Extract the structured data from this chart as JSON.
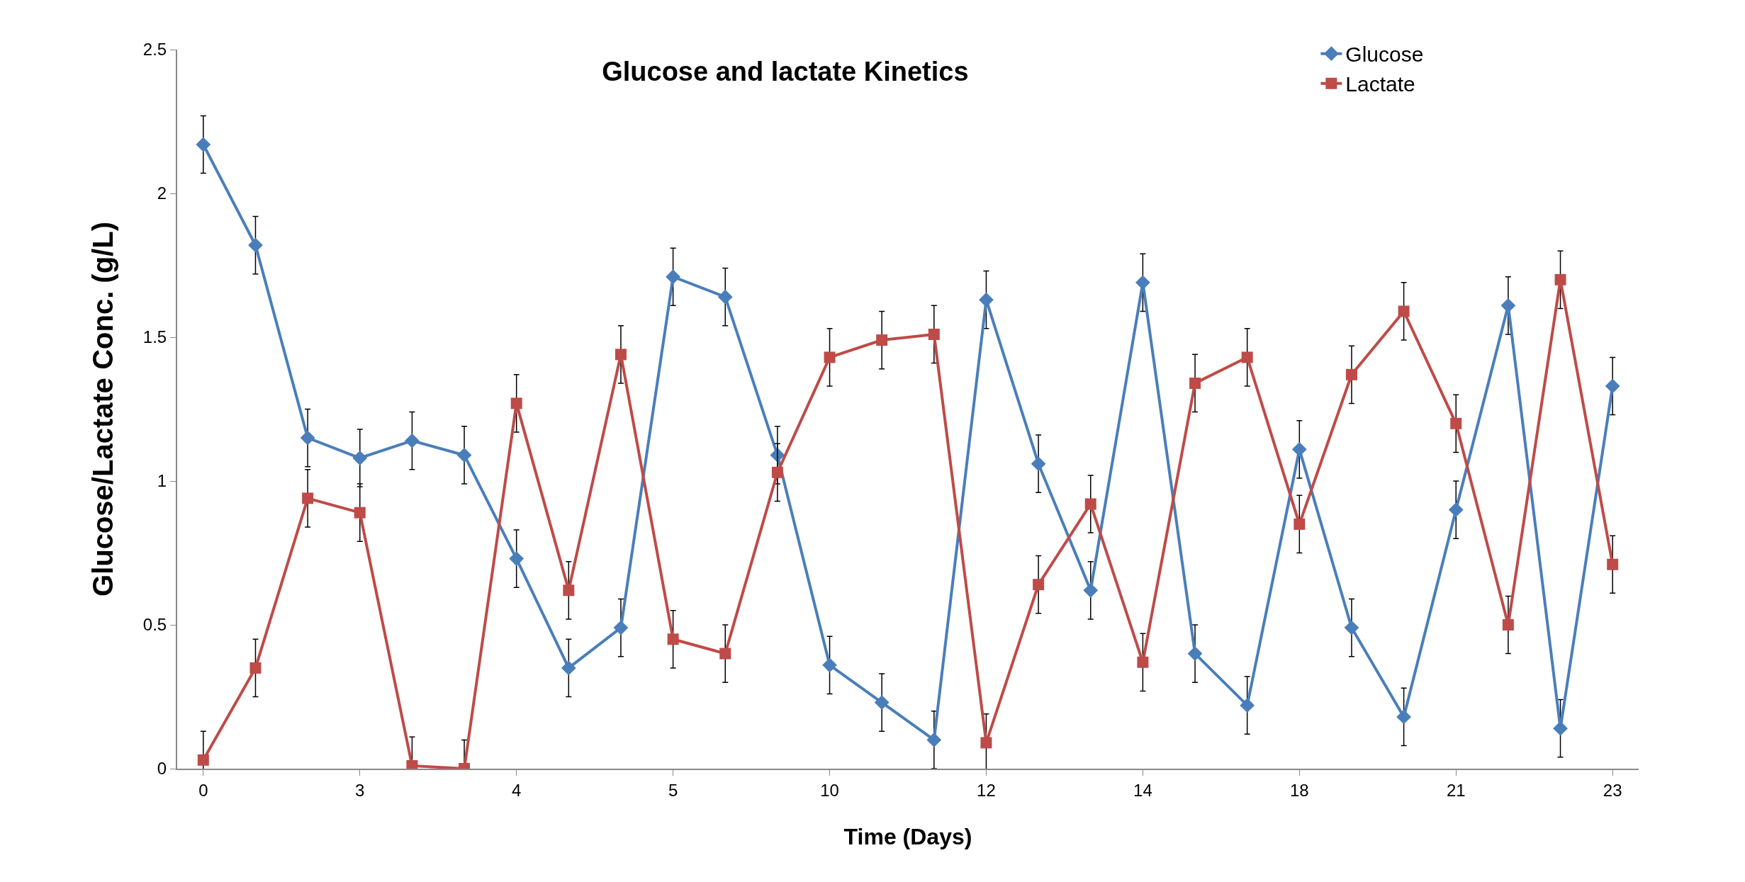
{
  "chart_data": {
    "type": "line",
    "title": "Glucose and lactate Kinetics",
    "xlabel": "Time (Days)",
    "ylabel": "Glucose/Lactate Conc. (g/L)",
    "categories": [
      "0",
      null,
      null,
      "3",
      null,
      null,
      "4",
      null,
      null,
      "5",
      null,
      null,
      "10",
      null,
      null,
      "12",
      null,
      null,
      "14",
      null,
      null,
      "18",
      null,
      null,
      "21",
      null,
      null,
      "23"
    ],
    "series": [
      {
        "name": "Glucose",
        "color": "#4a7ebb",
        "marker": "diamond",
        "values": [
          2.17,
          1.82,
          1.15,
          1.08,
          1.14,
          1.09,
          0.73,
          0.35,
          0.49,
          1.71,
          1.64,
          1.09,
          0.36,
          0.23,
          0.1,
          1.63,
          1.06,
          0.62,
          1.69,
          0.4,
          0.22,
          1.11,
          0.49,
          0.18,
          0.9,
          1.61,
          0.14,
          1.33
        ],
        "errors": [
          0.1,
          0.1,
          0.1,
          0.1,
          0.1,
          0.1,
          0.1,
          0.1,
          0.1,
          0.1,
          0.1,
          0.1,
          0.1,
          0.1,
          0.1,
          0.1,
          0.1,
          0.1,
          0.1,
          0.1,
          0.1,
          0.1,
          0.1,
          0.1,
          0.1,
          0.1,
          0.1,
          0.1
        ]
      },
      {
        "name": "Lactate",
        "color": "#be4b48",
        "marker": "square",
        "values": [
          0.03,
          0.35,
          0.94,
          0.89,
          0.01,
          0.0,
          1.27,
          0.62,
          1.44,
          0.45,
          0.4,
          1.03,
          1.43,
          1.49,
          1.51,
          0.09,
          0.64,
          0.92,
          0.37,
          1.34,
          1.43,
          0.85,
          1.37,
          1.59,
          1.2,
          0.5,
          1.7,
          0.71
        ],
        "errors": [
          0.1,
          0.1,
          0.1,
          0.1,
          0.1,
          0.1,
          0.1,
          0.1,
          0.1,
          0.1,
          0.1,
          0.1,
          0.1,
          0.1,
          0.1,
          0.1,
          0.1,
          0.1,
          0.1,
          0.1,
          0.1,
          0.1,
          0.1,
          0.1,
          0.1,
          0.1,
          0.1,
          0.1
        ]
      }
    ],
    "ylim": [
      0,
      2.5
    ],
    "yticks": [
      0,
      0.5,
      1,
      1.5,
      2,
      2.5
    ],
    "grid": false,
    "legend": "top right",
    "line_style": "solid"
  }
}
